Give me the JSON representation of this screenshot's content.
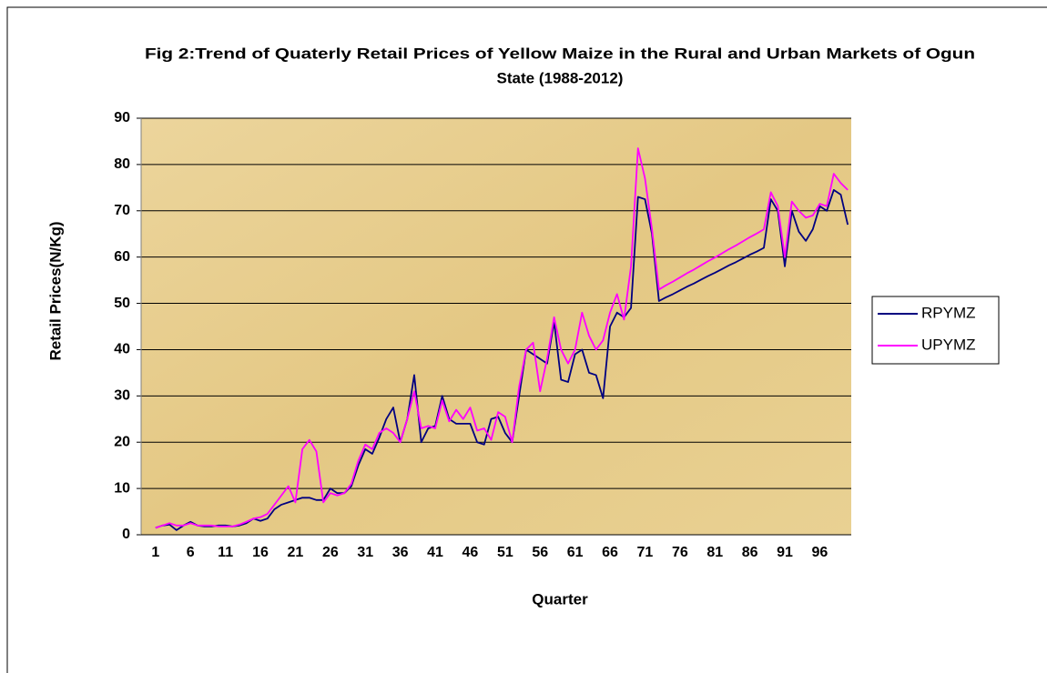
{
  "chart_data": {
    "type": "line",
    "title": [
      "Fig 2:Trend of Quaterly Retail Prices of Yellow Maize in the Rural and Urban Markets of Ogun",
      "State (1988-2012)"
    ],
    "x_label": "Quarter",
    "y_label": "Retail Prices(N/Kg)",
    "categories": [
      1,
      null,
      null,
      null,
      null,
      6,
      null,
      null,
      null,
      null,
      11,
      null,
      null,
      null,
      null,
      16,
      null,
      null,
      null,
      null,
      21,
      null,
      null,
      null,
      null,
      26,
      null,
      null,
      null,
      null,
      31,
      null,
      null,
      null,
      null,
      36,
      null,
      null,
      null,
      null,
      41,
      null,
      null,
      null,
      null,
      46,
      null,
      null,
      null,
      null,
      51,
      null,
      null,
      null,
      null,
      56,
      null,
      null,
      null,
      null,
      61,
      null,
      null,
      null,
      null,
      66,
      null,
      null,
      null,
      null,
      71,
      null,
      null,
      null,
      null,
      76,
      null,
      null,
      null,
      null,
      81,
      null,
      null,
      null,
      null,
      86,
      null,
      null,
      null,
      null,
      91,
      null,
      null,
      null,
      null,
      96,
      null,
      null,
      null,
      null
    ],
    "series": [
      {
        "name": "RPYMZ",
        "color": "#000080",
        "values": [
          1.5,
          2,
          2.2,
          1,
          2,
          2.8,
          2,
          1.8,
          1.8,
          2,
          2,
          1.8,
          2,
          2.5,
          3.5,
          3,
          3.5,
          5.5,
          6.5,
          7,
          7.5,
          8,
          8,
          7.5,
          7.5,
          10,
          9,
          9,
          10.5,
          15,
          18.5,
          17.5,
          21,
          25,
          27.5,
          20,
          25,
          34.5,
          20,
          23,
          23.5,
          30,
          25,
          24,
          24,
          24,
          20,
          19.5,
          25,
          25.5,
          22,
          20,
          30,
          40,
          39,
          38,
          37,
          46,
          33.5,
          33,
          39,
          40,
          35,
          34.5,
          29.5,
          45,
          48,
          47,
          49,
          73,
          72.5,
          65,
          50.5,
          51.3,
          52,
          52.8,
          53.6,
          54.3,
          55.1,
          55.9,
          56.6,
          57.4,
          58.2,
          58.9,
          59.7,
          60.5,
          61.2,
          62,
          72.5,
          70,
          58,
          70,
          65.5,
          63.5,
          66,
          71,
          70,
          74.5,
          73.5,
          67
        ]
      },
      {
        "name": "UPYMZ",
        "color": "#ff00ff",
        "values": [
          1.5,
          2,
          2.5,
          2,
          2,
          2.5,
          2,
          2,
          2,
          1.8,
          1.8,
          1.8,
          2.2,
          2.8,
          3.5,
          3.8,
          4.5,
          6.5,
          8.5,
          10.5,
          7,
          18.5,
          20.5,
          18,
          7,
          9,
          8.5,
          9,
          11,
          16,
          19.5,
          18.5,
          22,
          23,
          22,
          20,
          25,
          31,
          23,
          23.5,
          23,
          29,
          24.5,
          27,
          25,
          27.5,
          22.5,
          23,
          20.5,
          26.5,
          25.5,
          20,
          32,
          40,
          41.5,
          31,
          38,
          47,
          40,
          37,
          40,
          48,
          43,
          40,
          42,
          48,
          52,
          46.5,
          58,
          83.5,
          77,
          66,
          53,
          53.9,
          54.7,
          55.6,
          56.5,
          57.3,
          58.2,
          59.1,
          59.9,
          60.8,
          61.7,
          62.5,
          63.4,
          64.3,
          65.1,
          66,
          74,
          71,
          60,
          72,
          70,
          68.5,
          69,
          71.5,
          71,
          78,
          76,
          74.5
        ]
      }
    ],
    "ylim": [
      0,
      90
    ],
    "yticks": [
      0,
      10,
      20,
      30,
      40,
      50,
      60,
      70,
      80,
      90
    ],
    "grid": true,
    "legend": "right"
  }
}
